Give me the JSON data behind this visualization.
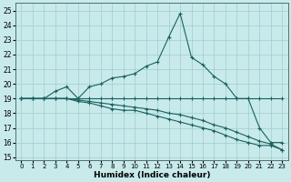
{
  "xlabel": "Humidex (Indice chaleur)",
  "bg_color": "#c8eaea",
  "grid_color": "#a0cccc",
  "line_color": "#1a6060",
  "xlim": [
    -0.5,
    23.5
  ],
  "ylim": [
    14.8,
    25.5
  ],
  "yticks": [
    15,
    16,
    17,
    18,
    19,
    20,
    21,
    22,
    23,
    24,
    25
  ],
  "xticks": [
    0,
    1,
    2,
    3,
    4,
    5,
    6,
    7,
    8,
    9,
    10,
    11,
    12,
    13,
    14,
    15,
    16,
    17,
    18,
    19,
    20,
    21,
    22,
    23
  ],
  "curve1_x": [
    0,
    1,
    2,
    3,
    4,
    5,
    6,
    7,
    8,
    9,
    10,
    11,
    12,
    13,
    14,
    15,
    16,
    17,
    18,
    19,
    20,
    21,
    22,
    23
  ],
  "curve1_y": [
    19.0,
    19.0,
    19.0,
    19.5,
    19.8,
    19.0,
    19.8,
    20.0,
    20.4,
    20.5,
    20.7,
    21.2,
    21.5,
    23.2,
    24.8,
    21.8,
    21.3,
    20.5,
    20.0,
    19.0,
    19.0,
    17.0,
    16.0,
    16.0
  ],
  "curve2_x": [
    0,
    1,
    2,
    3,
    4,
    5,
    6,
    7,
    8,
    9,
    10,
    11,
    12,
    13,
    14,
    15,
    16,
    17,
    18,
    19,
    20,
    21,
    22,
    23
  ],
  "curve2_y": [
    19.0,
    19.0,
    19.0,
    19.0,
    19.0,
    19.0,
    19.0,
    19.0,
    19.0,
    19.0,
    19.0,
    19.0,
    19.0,
    19.0,
    19.0,
    19.0,
    19.0,
    19.0,
    19.0,
    19.0,
    19.0,
    19.0,
    19.0,
    19.0
  ],
  "curve3_x": [
    0,
    1,
    2,
    3,
    4,
    5,
    6,
    7,
    8,
    9,
    10,
    11,
    12,
    13,
    14,
    15,
    16,
    17,
    18,
    19,
    20,
    21,
    22,
    23
  ],
  "curve3_y": [
    19.0,
    19.0,
    19.0,
    19.0,
    19.0,
    18.8,
    18.7,
    18.5,
    18.3,
    18.2,
    18.2,
    18.0,
    17.8,
    17.6,
    17.4,
    17.2,
    17.0,
    16.8,
    16.5,
    16.2,
    16.0,
    15.8,
    15.8,
    15.5
  ],
  "curve4_x": [
    0,
    1,
    2,
    3,
    4,
    5,
    6,
    7,
    8,
    9,
    10,
    11,
    12,
    13,
    14,
    15,
    16,
    17,
    18,
    19,
    20,
    21,
    22,
    23
  ],
  "curve4_y": [
    19.0,
    19.0,
    19.0,
    19.0,
    19.0,
    18.9,
    18.8,
    18.7,
    18.6,
    18.5,
    18.4,
    18.3,
    18.2,
    18.0,
    17.9,
    17.7,
    17.5,
    17.2,
    17.0,
    16.7,
    16.4,
    16.1,
    15.9,
    15.5
  ]
}
